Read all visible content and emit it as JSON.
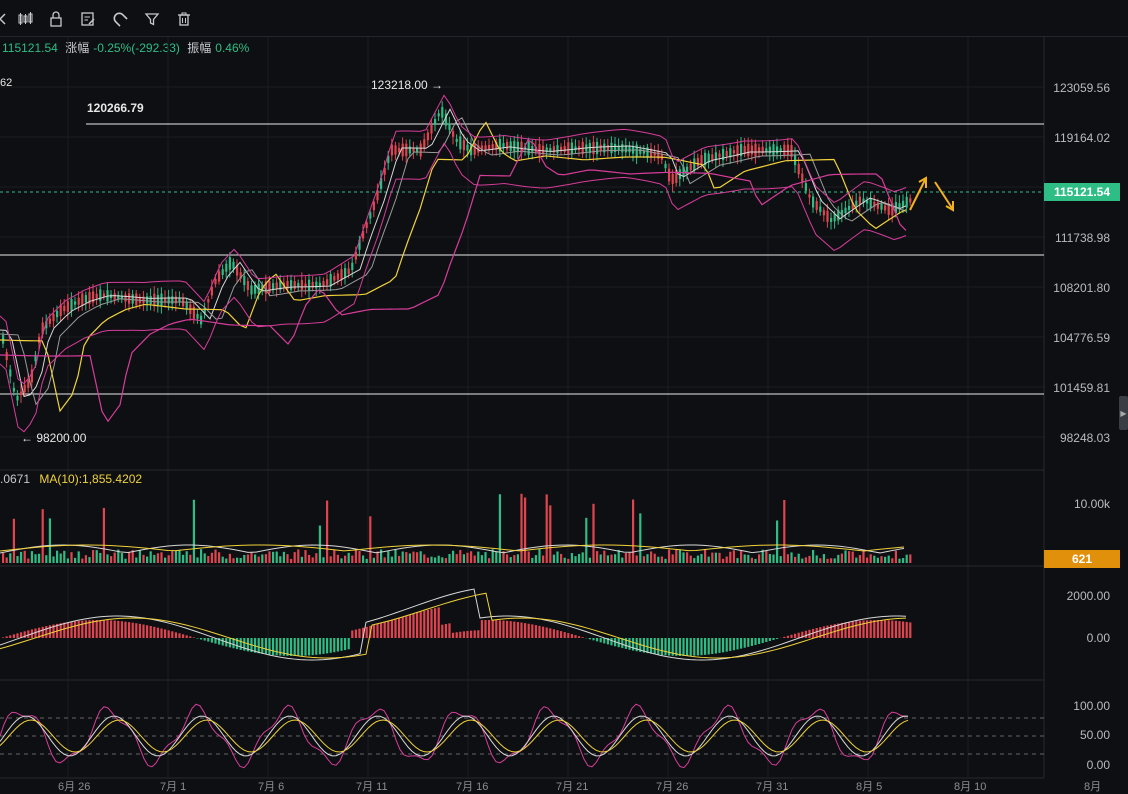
{
  "toolbar": {
    "icons": [
      "chevron-left-icon",
      "candlestick-icon",
      "lock-icon",
      "edit-note-icon",
      "magnet-icon",
      "filter-icon",
      "trash-icon"
    ]
  },
  "header": {
    "price": "115121.54",
    "change_label": "涨幅",
    "change_value": "-0.25%(-292.33)",
    "amplitude_label": "振幅",
    "amplitude_value": "0.46%",
    "indicator_fragment": "62"
  },
  "price_axis": {
    "labels": [
      "123059.56",
      "119164.02",
      "111738.98",
      "108201.80",
      "104776.59",
      "101459.81",
      "98248.03"
    ],
    "current_price": "115121.54"
  },
  "annotations": {
    "high": "123218.00 →",
    "level": "120266.79",
    "low": "← 98200.00"
  },
  "volume": {
    "legend_fragment": ".0671",
    "ma_label": "MA(10):1,855.4202",
    "axis_label": "10.00k",
    "current_volume": "621"
  },
  "macd": {
    "axis_labels": [
      "2000.00",
      "0.00"
    ]
  },
  "oscillator": {
    "axis_labels": [
      "100.00",
      "50.00",
      "0.00"
    ]
  },
  "x_axis": {
    "labels": [
      "6月 26",
      "7月 1",
      "7月 6",
      "7月 11",
      "7月 16",
      "7月 21",
      "7月 26",
      "7月 31",
      "8月 5",
      "8月 10",
      "8月"
    ]
  },
  "colors": {
    "up": "#2ebd85",
    "down": "#e0454f",
    "ma_white": "#d8d8d8",
    "ma_yellow": "#f0d23a",
    "ma_pink": "#d63d9a",
    "current_badge": "#2ebd85",
    "volume_badge": "#e0900b",
    "arrow": "#f3b21d"
  }
}
